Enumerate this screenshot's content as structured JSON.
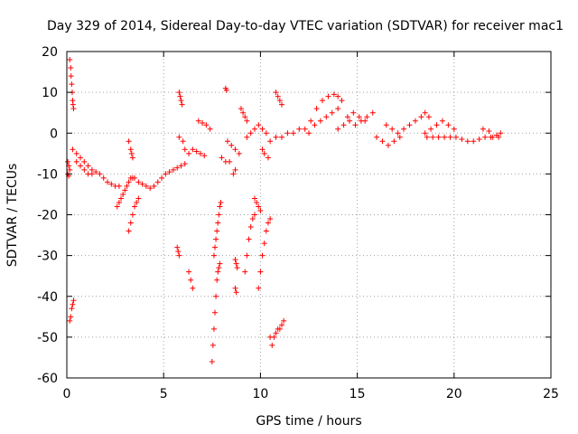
{
  "chart_data": {
    "type": "scatter",
    "title": "Day 329 of 2014, Sidereal Day-to-day VTEC variation (SDTVAR) for receiver mac1",
    "xlabel": "GPS time / hours",
    "ylabel": "SDTVAR / TECUs",
    "xlim": [
      0,
      25
    ],
    "ylim": [
      -60,
      20
    ],
    "xticks": [
      0,
      5,
      10,
      15,
      20,
      25
    ],
    "yticks": [
      -60,
      -50,
      -40,
      -30,
      -20,
      -10,
      0,
      10,
      20
    ],
    "grid": true,
    "marker": "+",
    "color": "#ff0000",
    "series": [
      {
        "name": "SDTVAR",
        "segments": [
          [
            [
              0.05,
              -7
            ],
            [
              0.1,
              -8
            ],
            [
              0.15,
              -9
            ],
            [
              0.05,
              -10
            ],
            [
              0.1,
              -10.5
            ]
          ],
          [
            [
              0.15,
              18
            ],
            [
              0.2,
              16
            ],
            [
              0.22,
              14
            ],
            [
              0.25,
              12
            ],
            [
              0.28,
              10
            ],
            [
              0.3,
              8
            ],
            [
              0.32,
              7
            ],
            [
              0.35,
              6
            ]
          ],
          [
            [
              0.15,
              -46
            ],
            [
              0.2,
              -45
            ],
            [
              0.25,
              -43
            ],
            [
              0.3,
              -42
            ],
            [
              0.35,
              -41
            ]
          ],
          [
            [
              0.3,
              -4
            ],
            [
              0.5,
              -5
            ],
            [
              0.7,
              -6
            ],
            [
              0.9,
              -7
            ],
            [
              1.1,
              -8
            ],
            [
              1.3,
              -9
            ],
            [
              1.5,
              -9.5
            ],
            [
              1.7,
              -10
            ],
            [
              1.9,
              -11
            ],
            [
              2.1,
              -12
            ],
            [
              2.3,
              -12.5
            ],
            [
              2.5,
              -13
            ],
            [
              2.7,
              -13
            ]
          ],
          [
            [
              0.5,
              -7
            ],
            [
              0.7,
              -8
            ],
            [
              0.9,
              -9
            ],
            [
              1.1,
              -10
            ],
            [
              1.3,
              -10
            ]
          ],
          [
            [
              2.6,
              -18
            ],
            [
              2.7,
              -17
            ],
            [
              2.8,
              -16
            ],
            [
              2.9,
              -15
            ],
            [
              3.0,
              -14
            ],
            [
              3.1,
              -13
            ],
            [
              3.2,
              -12
            ],
            [
              3.3,
              -11
            ],
            [
              3.4,
              -11
            ]
          ],
          [
            [
              3.2,
              -24
            ],
            [
              3.3,
              -22
            ],
            [
              3.4,
              -20
            ],
            [
              3.5,
              -18
            ],
            [
              3.6,
              -17
            ],
            [
              3.7,
              -16
            ]
          ],
          [
            [
              3.2,
              -2
            ],
            [
              3.3,
              -4
            ],
            [
              3.35,
              -5
            ],
            [
              3.4,
              -6
            ]
          ],
          [
            [
              3.5,
              -11
            ],
            [
              3.7,
              -12
            ],
            [
              3.9,
              -12.5
            ],
            [
              4.1,
              -13
            ],
            [
              4.3,
              -13.5
            ],
            [
              4.5,
              -13
            ],
            [
              4.7,
              -12
            ],
            [
              4.9,
              -11
            ],
            [
              5.1,
              -10
            ],
            [
              5.3,
              -9.5
            ],
            [
              5.5,
              -9
            ],
            [
              5.7,
              -8.5
            ],
            [
              5.9,
              -8
            ],
            [
              6.1,
              -7.5
            ]
          ],
          [
            [
              5.7,
              -28
            ],
            [
              5.75,
              -29
            ],
            [
              5.8,
              -30
            ]
          ],
          [
            [
              5.8,
              10
            ],
            [
              5.85,
              9
            ],
            [
              5.9,
              8
            ],
            [
              5.95,
              7
            ]
          ],
          [
            [
              5.8,
              -1
            ],
            [
              6.0,
              -2
            ],
            [
              6.1,
              -4
            ],
            [
              6.3,
              -5
            ]
          ],
          [
            [
              6.3,
              -34
            ],
            [
              6.4,
              -36
            ],
            [
              6.5,
              -38
            ]
          ],
          [
            [
              6.5,
              -4
            ],
            [
              6.7,
              -4.5
            ],
            [
              6.9,
              -5
            ],
            [
              7.1,
              -5.5
            ]
          ],
          [
            [
              6.8,
              3
            ],
            [
              7.0,
              2.5
            ],
            [
              7.2,
              2
            ],
            [
              7.4,
              1
            ]
          ],
          [
            [
              7.5,
              -56
            ],
            [
              7.55,
              -52
            ],
            [
              7.6,
              -48
            ],
            [
              7.65,
              -44
            ],
            [
              7.7,
              -40
            ],
            [
              7.75,
              -36
            ],
            [
              7.8,
              -34
            ],
            [
              7.85,
              -33
            ],
            [
              7.9,
              -32
            ]
          ],
          [
            [
              7.6,
              -30
            ],
            [
              7.65,
              -28
            ],
            [
              7.7,
              -26
            ],
            [
              7.75,
              -24
            ],
            [
              7.8,
              -22
            ],
            [
              7.85,
              -20
            ],
            [
              7.9,
              -18
            ],
            [
              7.95,
              -17
            ]
          ],
          [
            [
              8.0,
              -6
            ],
            [
              8.2,
              -7
            ],
            [
              8.4,
              -7
            ]
          ],
          [
            [
              8.2,
              11
            ],
            [
              8.25,
              10.5
            ]
          ],
          [
            [
              8.3,
              -2
            ],
            [
              8.5,
              -3
            ],
            [
              8.7,
              -4
            ],
            [
              8.9,
              -5
            ]
          ],
          [
            [
              8.6,
              -10
            ],
            [
              8.7,
              -9
            ]
          ],
          [
            [
              8.7,
              -31
            ],
            [
              8.75,
              -32
            ],
            [
              8.8,
              -33
            ],
            [
              8.7,
              -38
            ],
            [
              8.75,
              -39
            ]
          ],
          [
            [
              9.0,
              6
            ],
            [
              9.1,
              5
            ],
            [
              9.2,
              4
            ],
            [
              9.3,
              3
            ]
          ],
          [
            [
              9.2,
              -34
            ],
            [
              9.3,
              -30
            ],
            [
              9.4,
              -26
            ],
            [
              9.5,
              -23
            ],
            [
              9.6,
              -21
            ],
            [
              9.7,
              -20
            ]
          ],
          [
            [
              9.3,
              -1
            ],
            [
              9.5,
              0
            ],
            [
              9.7,
              1
            ],
            [
              9.9,
              2
            ],
            [
              10.1,
              1
            ],
            [
              10.3,
              0
            ]
          ],
          [
            [
              9.7,
              -16
            ],
            [
              9.8,
              -17
            ],
            [
              9.9,
              -18
            ],
            [
              10.0,
              -19
            ]
          ],
          [
            [
              9.9,
              -38
            ],
            [
              10.0,
              -34
            ],
            [
              10.1,
              -30
            ],
            [
              10.2,
              -27
            ],
            [
              10.3,
              -24
            ],
            [
              10.4,
              -22
            ],
            [
              10.5,
              -21
            ]
          ],
          [
            [
              10.5,
              -50
            ],
            [
              10.6,
              -52
            ],
            [
              10.7,
              -50
            ],
            [
              10.8,
              -49
            ],
            [
              10.9,
              -48
            ],
            [
              11.0,
              -48
            ],
            [
              11.1,
              -47
            ],
            [
              11.2,
              -46
            ]
          ],
          [
            [
              10.1,
              -4
            ],
            [
              10.2,
              -5
            ],
            [
              10.4,
              -6
            ]
          ],
          [
            [
              10.8,
              10
            ],
            [
              10.9,
              9
            ],
            [
              11.0,
              8
            ],
            [
              11.1,
              7
            ]
          ],
          [
            [
              10.5,
              -2
            ],
            [
              10.8,
              -1
            ],
            [
              11.1,
              -1
            ],
            [
              11.4,
              0
            ],
            [
              11.7,
              0
            ],
            [
              12.0,
              1
            ],
            [
              12.3,
              1
            ]
          ],
          [
            [
              12.5,
              0
            ],
            [
              12.8,
              2
            ],
            [
              13.1,
              3
            ],
            [
              13.4,
              4
            ],
            [
              13.7,
              5
            ],
            [
              14.0,
              6
            ]
          ],
          [
            [
              12.6,
              3
            ],
            [
              12.9,
              6
            ],
            [
              13.2,
              8
            ],
            [
              13.5,
              9
            ],
            [
              13.8,
              9.5
            ],
            [
              14.0,
              9
            ],
            [
              14.2,
              8
            ]
          ],
          [
            [
              14.0,
              1
            ],
            [
              14.3,
              2
            ],
            [
              14.6,
              3
            ],
            [
              14.9,
              2
            ],
            [
              15.2,
              3
            ],
            [
              15.5,
              4
            ],
            [
              15.8,
              5
            ]
          ],
          [
            [
              14.5,
              4
            ],
            [
              14.8,
              5
            ],
            [
              15.1,
              4
            ],
            [
              15.4,
              3
            ]
          ],
          [
            [
              16.0,
              -1
            ],
            [
              16.3,
              -2
            ],
            [
              16.6,
              -3
            ],
            [
              16.9,
              -2
            ],
            [
              17.2,
              -1
            ]
          ],
          [
            [
              16.5,
              2
            ],
            [
              16.8,
              1
            ],
            [
              17.1,
              0
            ],
            [
              17.4,
              1
            ],
            [
              17.7,
              2
            ],
            [
              18.0,
              3
            ],
            [
              18.3,
              4
            ],
            [
              18.5,
              5
            ],
            [
              18.7,
              4
            ]
          ],
          [
            [
              18.5,
              0
            ],
            [
              18.8,
              1
            ],
            [
              19.1,
              2
            ],
            [
              19.4,
              3
            ],
            [
              19.7,
              2
            ],
            [
              20.0,
              1
            ]
          ],
          [
            [
              18.6,
              -1
            ],
            [
              18.9,
              -1
            ],
            [
              19.2,
              -1
            ],
            [
              19.5,
              -1
            ],
            [
              19.8,
              -1
            ],
            [
              20.1,
              -1
            ],
            [
              20.4,
              -1.5
            ],
            [
              20.7,
              -2
            ],
            [
              21.0,
              -2
            ],
            [
              21.3,
              -1.5
            ],
            [
              21.6,
              -1
            ],
            [
              21.9,
              -1
            ],
            [
              22.2,
              -0.5
            ],
            [
              22.4,
              0
            ]
          ],
          [
            [
              21.5,
              1
            ],
            [
              21.8,
              0.5
            ]
          ],
          [
            [
              22.0,
              -1
            ],
            [
              22.3,
              -1
            ]
          ]
        ]
      }
    ]
  }
}
